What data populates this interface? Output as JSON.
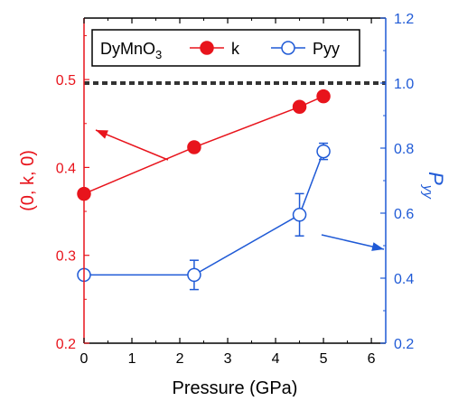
{
  "colors": {
    "left_axis": "#e8141c",
    "right_axis": "#1f5ad6",
    "dashed_line": "#333333",
    "frame": "#000000"
  },
  "chart_data": {
    "type": "line",
    "xlabel": "Pressure (GPa)",
    "ylabel_left": "(0, k, 0)",
    "ylabel_right": "P",
    "ylabel_right_sub": "yy",
    "xlim": [
      0,
      6.3
    ],
    "ylim_left": [
      0.2,
      0.57
    ],
    "ylim_right": [
      0.2,
      1.2
    ],
    "x_ticks": [
      "0",
      "1",
      "2",
      "3",
      "4",
      "5",
      "6"
    ],
    "left_ticks": [
      "0.2",
      "0.3",
      "0.4",
      "0.5"
    ],
    "right_ticks": [
      "0.2",
      "0.4",
      "0.6",
      "0.8",
      "1.0",
      "1.2"
    ],
    "legend": {
      "title_main": "DyMnO",
      "title_sub": "3",
      "position": "top-left"
    },
    "series": [
      {
        "name": "k",
        "axis": "left",
        "marker": "filled-circle",
        "x": [
          0,
          2.3,
          4.5,
          5.0
        ],
        "y": [
          0.37,
          0.423,
          0.469,
          0.481
        ]
      },
      {
        "name": "Pyy",
        "axis": "right",
        "marker": "open-circle",
        "x": [
          0,
          2.3,
          4.5,
          5.0
        ],
        "y": [
          0.41,
          0.41,
          0.595,
          0.79
        ],
        "err": [
          0,
          0.045,
          0.065,
          0.025
        ]
      }
    ],
    "reference_line": {
      "axis": "right",
      "y": 1.0,
      "style": "dotted"
    }
  }
}
